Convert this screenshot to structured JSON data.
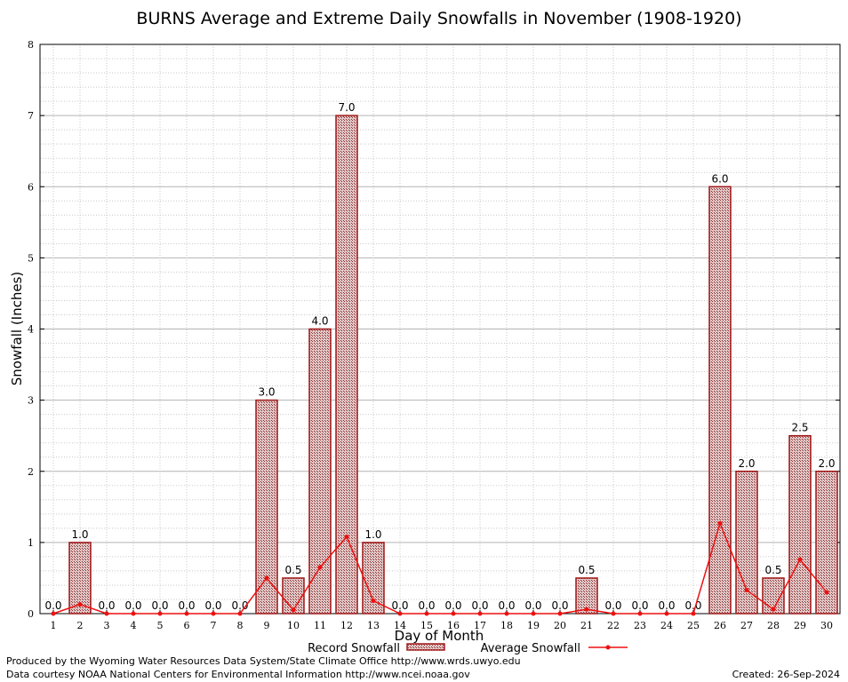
{
  "chart_data": {
    "type": "bar",
    "title": "BURNS Average and Extreme Daily Snowfalls in November (1908-1920)",
    "xlabel": "Day of Month",
    "ylabel": "Snowfall (Inches)",
    "ylim": [
      0,
      8
    ],
    "yticks": [
      "0",
      "1",
      "2",
      "3",
      "4",
      "5",
      "6",
      "7",
      "8"
    ],
    "categories": [
      "1",
      "2",
      "3",
      "4",
      "5",
      "6",
      "7",
      "8",
      "9",
      "10",
      "11",
      "12",
      "13",
      "14",
      "15",
      "16",
      "17",
      "18",
      "19",
      "20",
      "21",
      "22",
      "23",
      "24",
      "25",
      "26",
      "27",
      "28",
      "29",
      "30"
    ],
    "series": [
      {
        "name": "Record Snowfall",
        "kind": "bar",
        "color": "#a01818",
        "values": [
          0.0,
          1.0,
          0.0,
          0.0,
          0.0,
          0.0,
          0.0,
          0.0,
          3.0,
          0.5,
          4.0,
          7.0,
          1.0,
          0.0,
          0.0,
          0.0,
          0.0,
          0.0,
          0.0,
          0.0,
          0.5,
          0.0,
          0.0,
          0.0,
          0.0,
          6.0,
          2.0,
          0.5,
          2.5,
          2.0
        ],
        "labels": [
          "0.0",
          "1.0",
          "0.0",
          "0.0",
          "0.0",
          "0.0",
          "0.0",
          "0.0",
          "3.0",
          "0.5",
          "4.0",
          "7.0",
          "1.0",
          "0.0",
          "0.0",
          "0.0",
          "0.0",
          "0.0",
          "0.0",
          "0.0",
          "0.5",
          "0.0",
          "0.0",
          "0.0",
          "0.0",
          "6.0",
          "2.0",
          "0.5",
          "2.5",
          "2.0"
        ]
      },
      {
        "name": "Average Snowfall",
        "kind": "line",
        "color": "#ee1111",
        "values": [
          0.0,
          0.13,
          0.0,
          0.0,
          0.0,
          0.0,
          0.0,
          0.0,
          0.5,
          0.05,
          0.65,
          1.08,
          0.18,
          0.0,
          0.0,
          0.0,
          0.0,
          0.0,
          0.0,
          0.0,
          0.06,
          0.0,
          0.0,
          0.0,
          0.0,
          1.27,
          0.33,
          0.06,
          0.76,
          0.3
        ]
      }
    ],
    "grid": true,
    "legend_position": "bottom-center"
  },
  "footer": {
    "produced_by": "Produced by the Wyoming Water Resources Data System/State Climate Office http://www.wrds.uwyo.edu",
    "courtesy": "Data courtesy NOAA National Centers for Environmental Information http://www.ncei.noaa.gov",
    "created": "Created:  26-Sep-2024"
  }
}
